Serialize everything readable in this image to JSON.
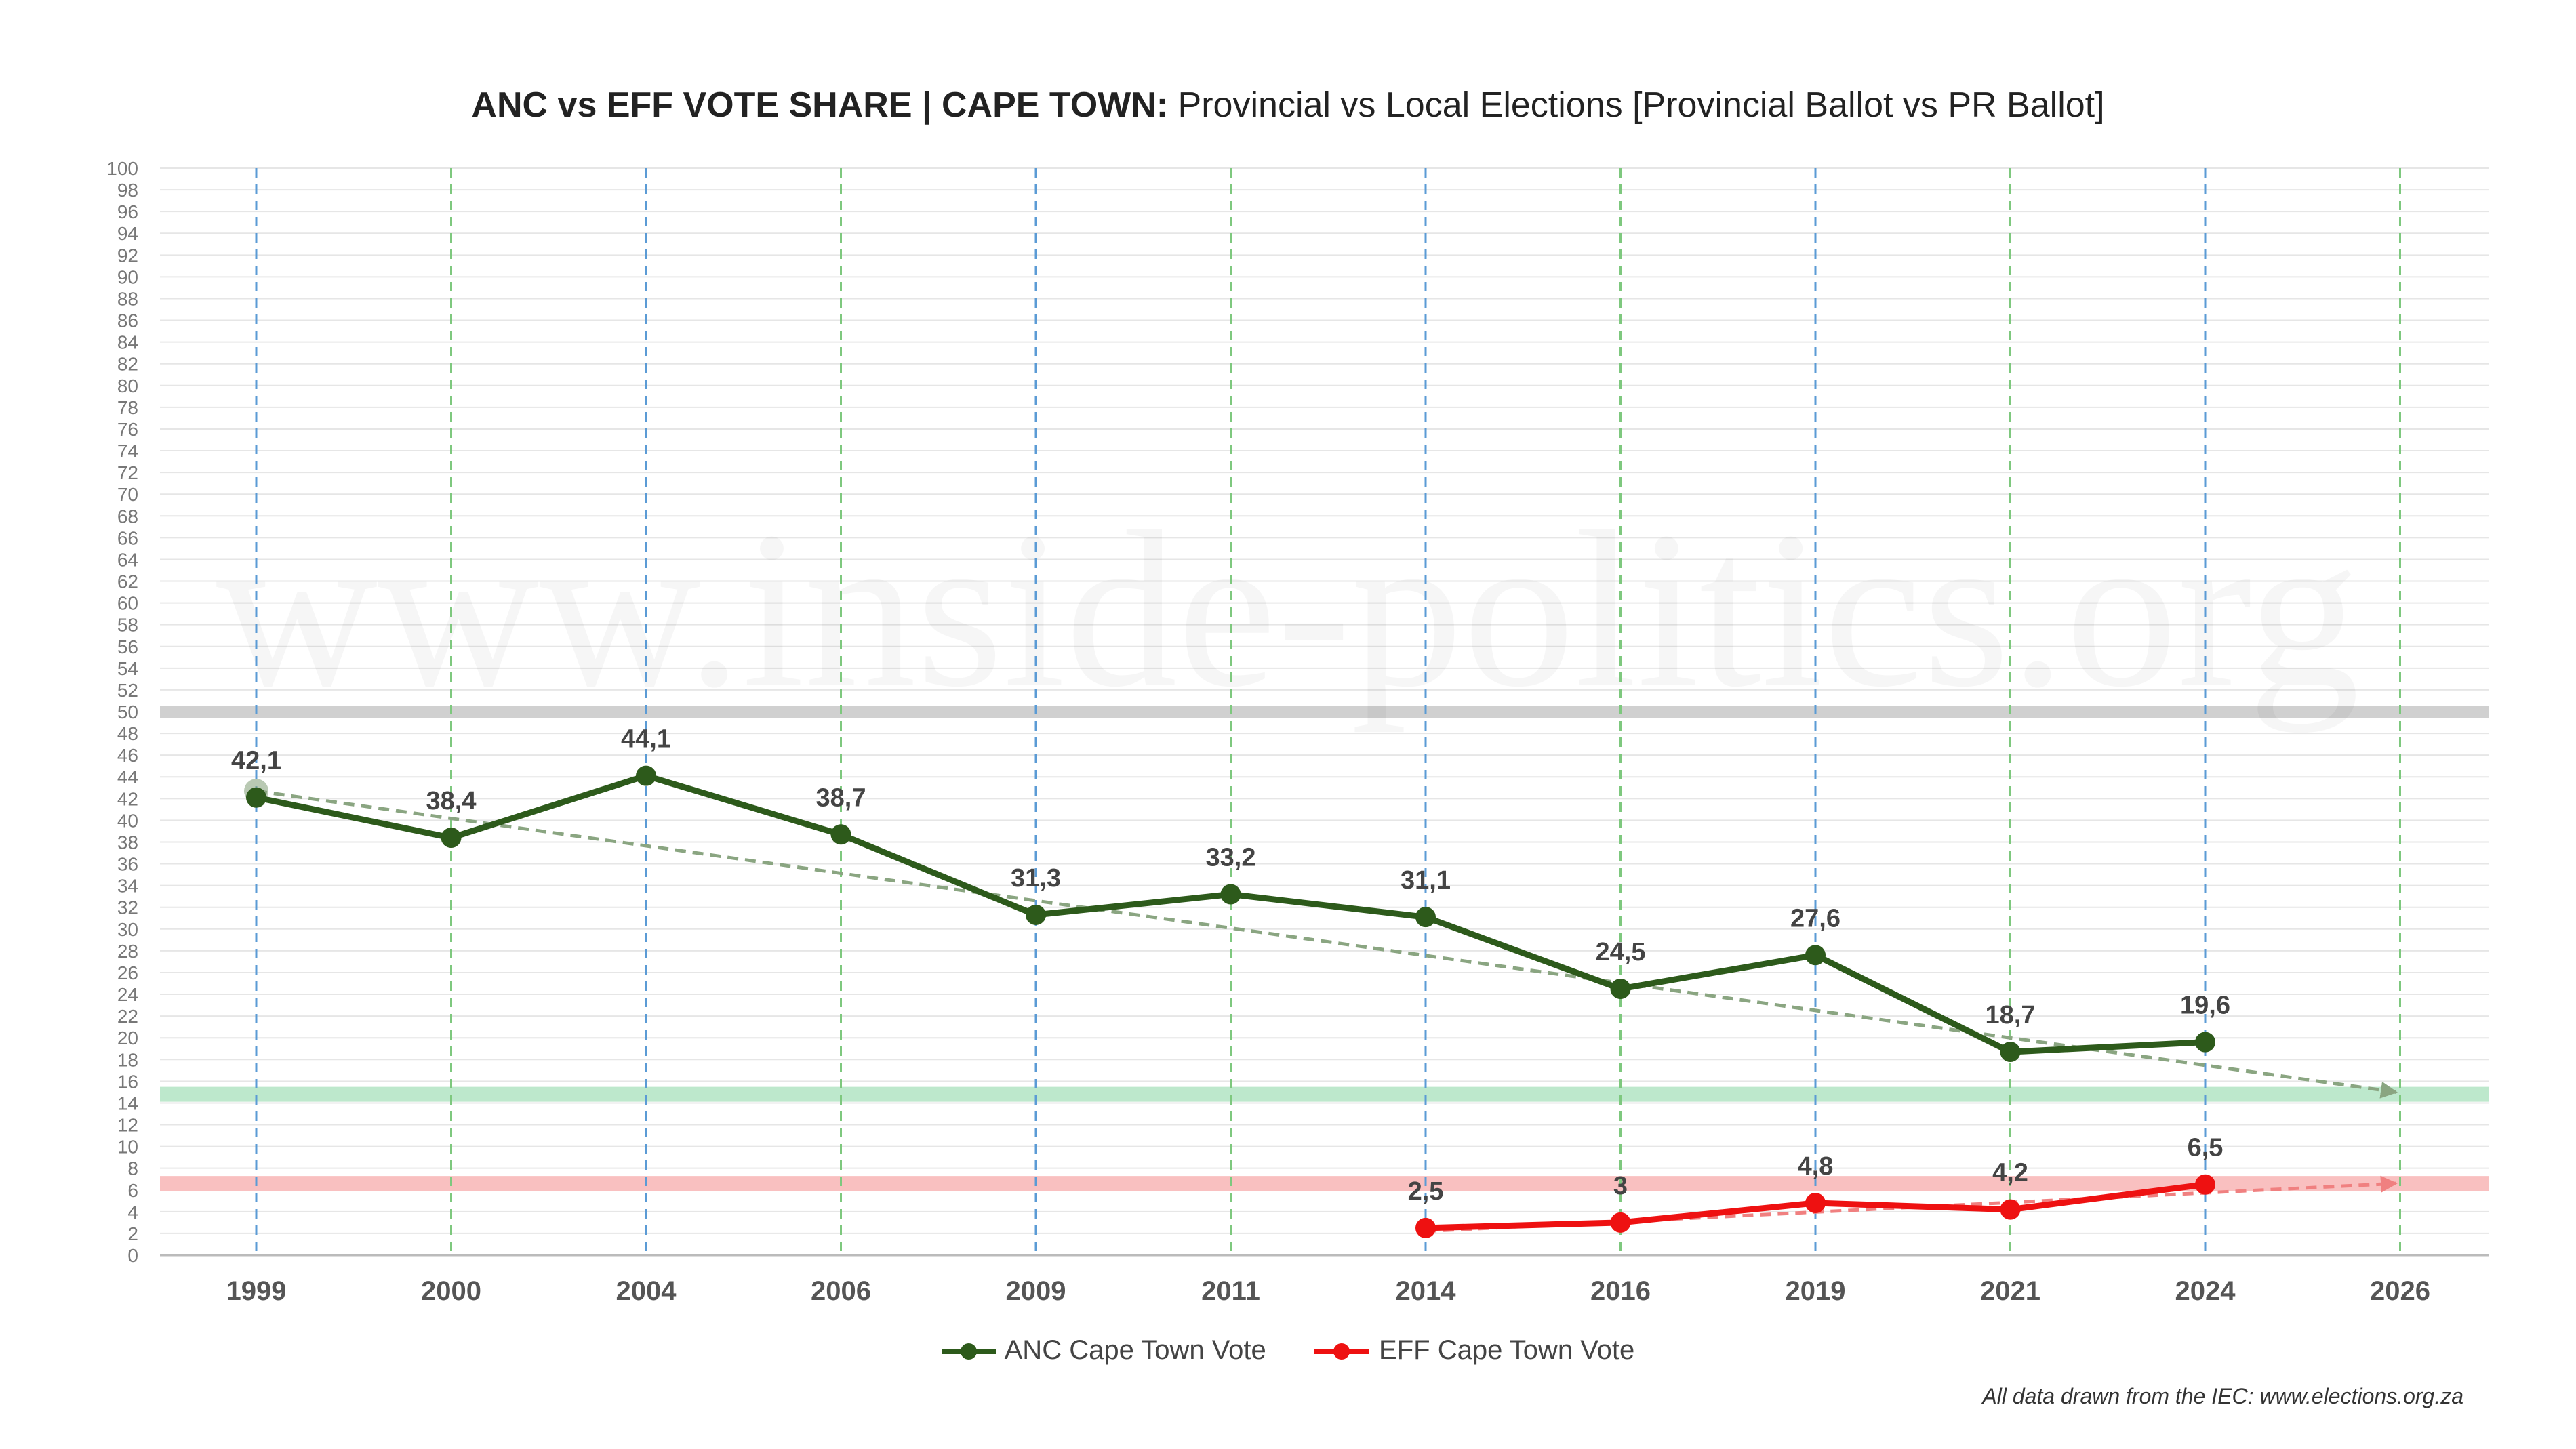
{
  "title": {
    "bold": "ANC vs EFF VOTE SHARE | CAPE TOWN:",
    "rest": " Provincial vs Local Elections [Provincial Ballot vs PR Ballot]"
  },
  "watermark": "www.inside-politics.org",
  "source": "All data drawn from the IEC: www.elections.org.za",
  "colors": {
    "anc": "#2d5a1b",
    "eff": "#ee1111",
    "anc_trend": "#8aa581",
    "eff_trend": "#f08080",
    "provincial_guide": "#5b9bd5",
    "local_guide": "#7ec87e",
    "line_50": "#d0d0d0",
    "band_green": "#bde8cc",
    "band_red": "#f9c0c0"
  },
  "chart_data": {
    "type": "line",
    "title": "ANC vs EFF VOTE SHARE | CAPE TOWN: Provincial vs Local Elections [Provincial Ballot vs PR Ballot]",
    "categories": [
      "1999",
      "2000",
      "2004",
      "2006",
      "2009",
      "2011",
      "2014",
      "2016",
      "2019",
      "2021",
      "2024",
      "2026"
    ],
    "guide_types": [
      "provincial",
      "local",
      "provincial",
      "local",
      "provincial",
      "local",
      "provincial",
      "local",
      "provincial",
      "local",
      "provincial",
      "local"
    ],
    "ylim": [
      0,
      100
    ],
    "yticks": [
      0,
      2,
      4,
      6,
      8,
      10,
      12,
      14,
      16,
      18,
      20,
      22,
      24,
      26,
      28,
      30,
      32,
      34,
      36,
      38,
      40,
      42,
      44,
      46,
      48,
      50,
      52,
      54,
      56,
      58,
      60,
      62,
      64,
      66,
      68,
      70,
      72,
      74,
      76,
      78,
      80,
      82,
      84,
      86,
      88,
      90,
      92,
      94,
      96,
      98,
      100
    ],
    "series": [
      {
        "name": "ANC Cape Town Vote",
        "values": [
          42.1,
          38.4,
          44.1,
          38.7,
          31.3,
          33.2,
          31.1,
          24.5,
          27.6,
          18.7,
          19.6,
          null
        ],
        "labels": [
          "42,1",
          "38,4",
          "44,1",
          "38,7",
          "31,3",
          "33,2",
          "31,1",
          "24,5",
          "27,6",
          "18,7",
          "19,6",
          ""
        ]
      },
      {
        "name": "EFF Cape Town Vote",
        "values": [
          null,
          null,
          null,
          null,
          null,
          null,
          2.5,
          3,
          4.8,
          4.2,
          6.5,
          null
        ],
        "labels": [
          "",
          "",
          "",
          "",
          "",
          "",
          "2,5",
          "3",
          "4,8",
          "4,2",
          "6,5",
          ""
        ]
      }
    ],
    "trendlines": [
      {
        "series": "ANC Cape Town Vote",
        "from": {
          "x": "1999",
          "y": 42.7
        },
        "to": {
          "x": "2026",
          "y": 15
        }
      },
      {
        "series": "EFF Cape Town Vote",
        "from": {
          "x": "2014",
          "y": 2.2
        },
        "to": {
          "x": "2026",
          "y": 6.6
        }
      }
    ],
    "reference_lines": [
      {
        "y": 50
      }
    ],
    "reference_bands": [
      {
        "y": 14.8,
        "color": "green"
      },
      {
        "y": 6.6,
        "color": "red"
      }
    ]
  }
}
